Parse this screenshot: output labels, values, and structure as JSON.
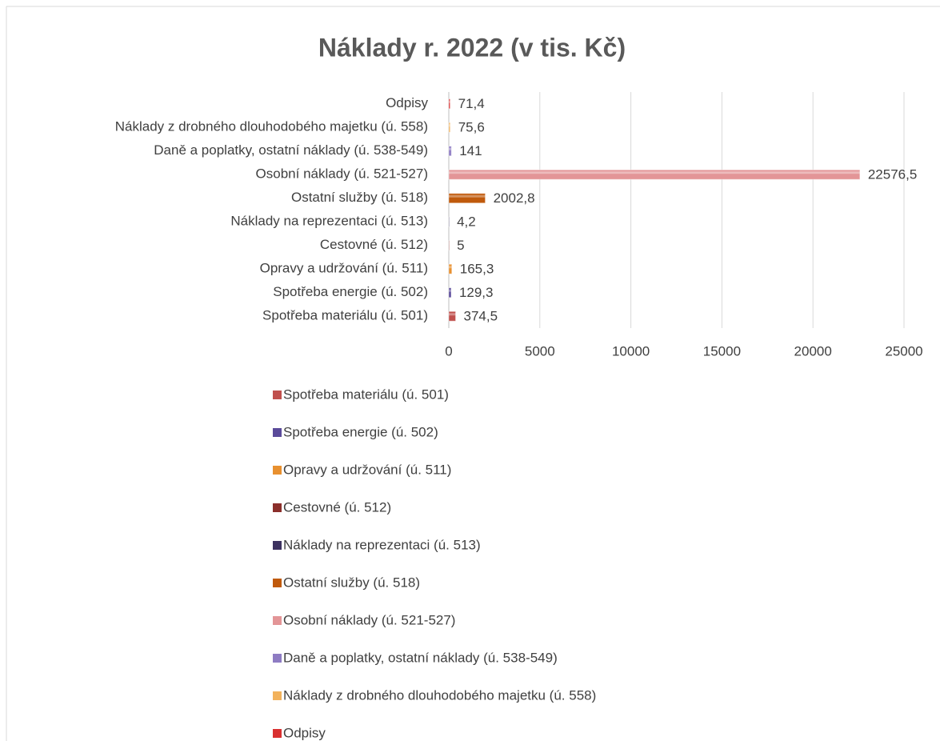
{
  "chart_data": {
    "type": "bar",
    "orientation": "horizontal",
    "title": "Náklady r. 2022 (v tis. Kč)",
    "categories": [
      "Spotřeba materiálu (ú. 501)",
      "Spotřeba energie (ú. 502)",
      "Opravy a udržování (ú. 511)",
      "Cestovné (ú. 512)",
      "Náklady na reprezentaci (ú. 513)",
      "Ostatní služby (ú. 518)",
      "Osobní náklady (ú. 521-527)",
      "Daně a poplatky, ostatní náklady (ú. 538-549)",
      "Náklady z drobného dlouhodobého majetku (ú. 558)",
      "Odpisy"
    ],
    "values": [
      374.5,
      129.3,
      165.3,
      5,
      4.2,
      2002.8,
      22576.5,
      141,
      75.6,
      71.4
    ],
    "value_labels": [
      "374,5",
      "129,3",
      "165,3",
      "5",
      "4,2",
      "2002,8",
      "22576,5",
      "141",
      "75,6",
      "71,4"
    ],
    "colors": [
      "#c0504d",
      "#5a4a9a",
      "#e8902f",
      "#8b2f2b",
      "#3d3260",
      "#c05a0c",
      "#e39597",
      "#8e7cc3",
      "#f2b25c",
      "#d93030"
    ],
    "xlim": [
      0,
      25000
    ],
    "xticks": [
      0,
      5000,
      10000,
      15000,
      20000,
      25000
    ],
    "grid": true,
    "legend": "bottom"
  }
}
